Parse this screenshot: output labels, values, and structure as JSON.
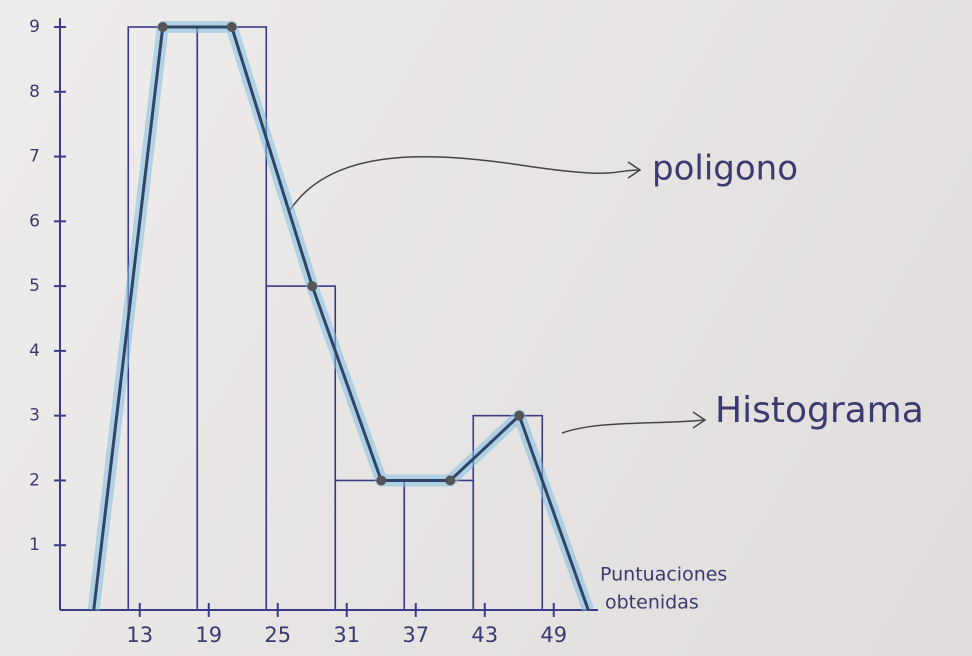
{
  "chart_data": {
    "type": "histogram",
    "bins": [
      12,
      18,
      24,
      30,
      36,
      42,
      48
    ],
    "counts": [
      9,
      9,
      5,
      2,
      2,
      3
    ],
    "color": "#3b3a8a",
    "polygon": {
      "x": [
        9,
        15,
        21,
        28,
        34,
        40,
        46,
        52
      ],
      "values": [
        0,
        9,
        9,
        5,
        2,
        2,
        3,
        0
      ],
      "color": "#2f4466"
    },
    "xlim": [
      6.5,
      52.5
    ],
    "ylim": [
      0,
      9
    ],
    "xticks": [
      13,
      19,
      25,
      31,
      37,
      43,
      49
    ],
    "yticks": [
      1,
      2,
      3,
      4,
      5,
      6,
      7,
      8,
      9
    ],
    "x_label": [
      "Puntuaciones",
      "obtenidas"
    ],
    "annotations": [
      "poligono",
      "Histograma"
    ]
  }
}
